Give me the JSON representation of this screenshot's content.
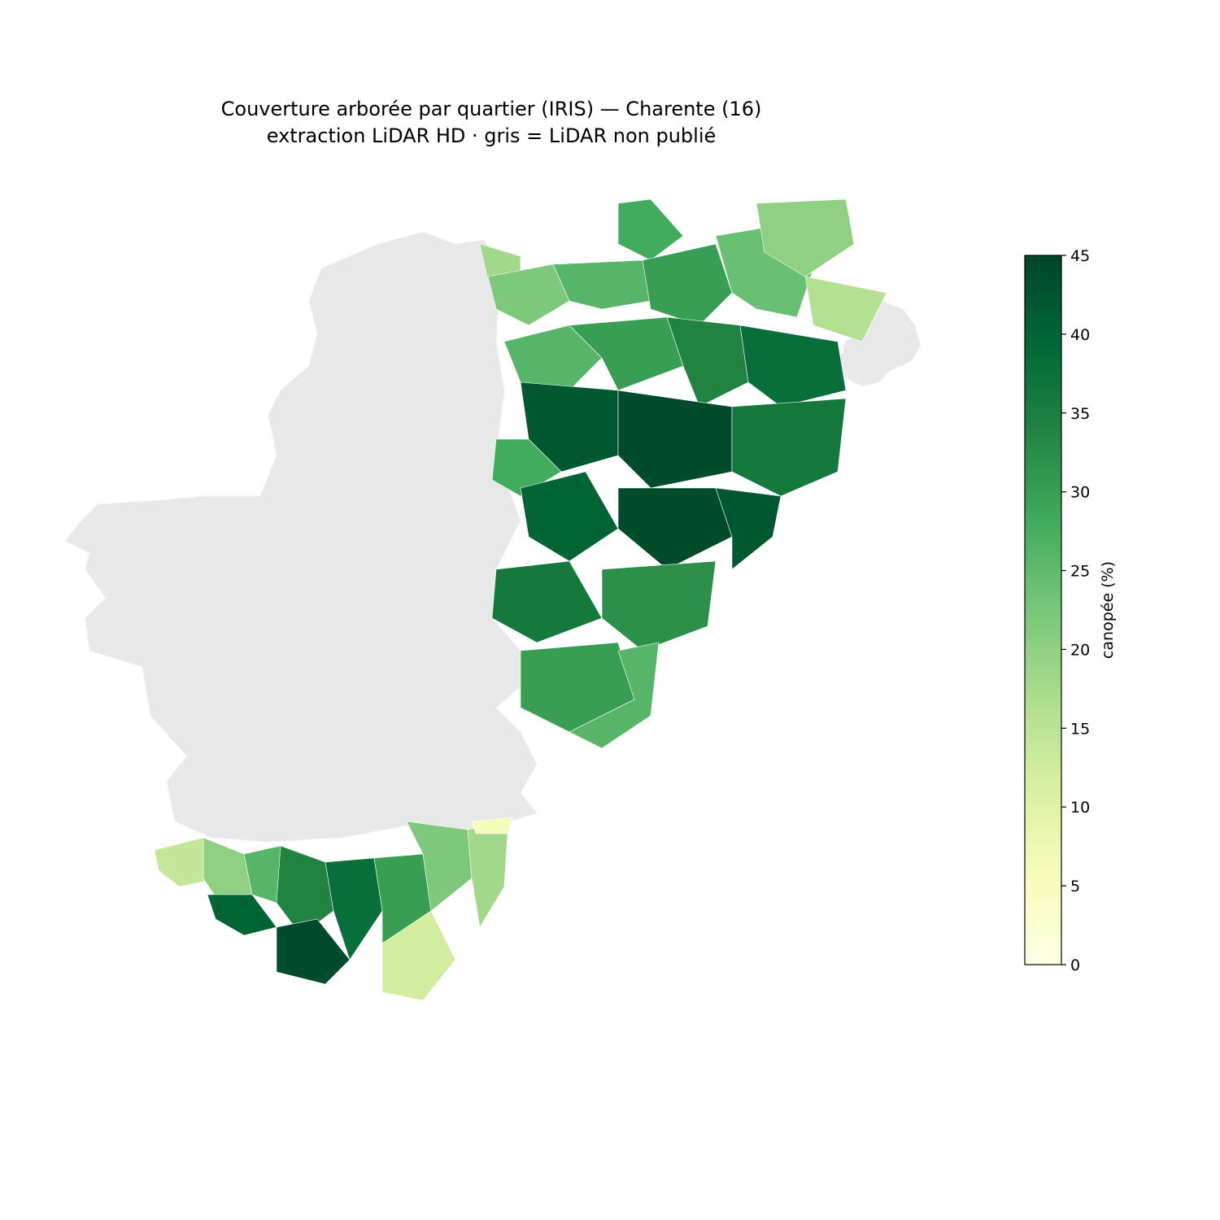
{
  "title": {
    "line1": "Couverture arborée par quartier (IRIS) — Charente (16)",
    "line2": "extraction LiDAR HD · gris = LiDAR non publié"
  },
  "colorbar": {
    "label": "canopée (%)",
    "min": 0,
    "max": 45,
    "ticks": [
      "0",
      "5",
      "10",
      "15",
      "20",
      "25",
      "30",
      "35",
      "40",
      "45"
    ],
    "colormap": "YlGn",
    "stops": [
      "#ffffe5",
      "#f7fcb9",
      "#d9f0a3",
      "#addd8e",
      "#78c679",
      "#41ab5d",
      "#238443",
      "#006837",
      "#004529"
    ]
  },
  "legend_note": {
    "nodata_color": "#e8e8e8"
  },
  "chart_data": {
    "type": "choropleth",
    "region": "Charente (16)",
    "unit": "canopée (%)",
    "range": [
      0,
      45
    ],
    "nodata_color": "#e8e8e8",
    "zones_estimated_values": {
      "north_east_band": [
        18,
        22,
        26,
        28,
        30,
        24,
        20,
        16
      ],
      "east_central_band": [
        26,
        30,
        34,
        38,
        42,
        44,
        36,
        28
      ],
      "south_east_band": [
        40,
        44,
        42,
        36,
        32,
        30,
        26
      ],
      "south_band": [
        14,
        20,
        26,
        34,
        40,
        44,
        38,
        30,
        22,
        18,
        12,
        6
      ]
    }
  }
}
